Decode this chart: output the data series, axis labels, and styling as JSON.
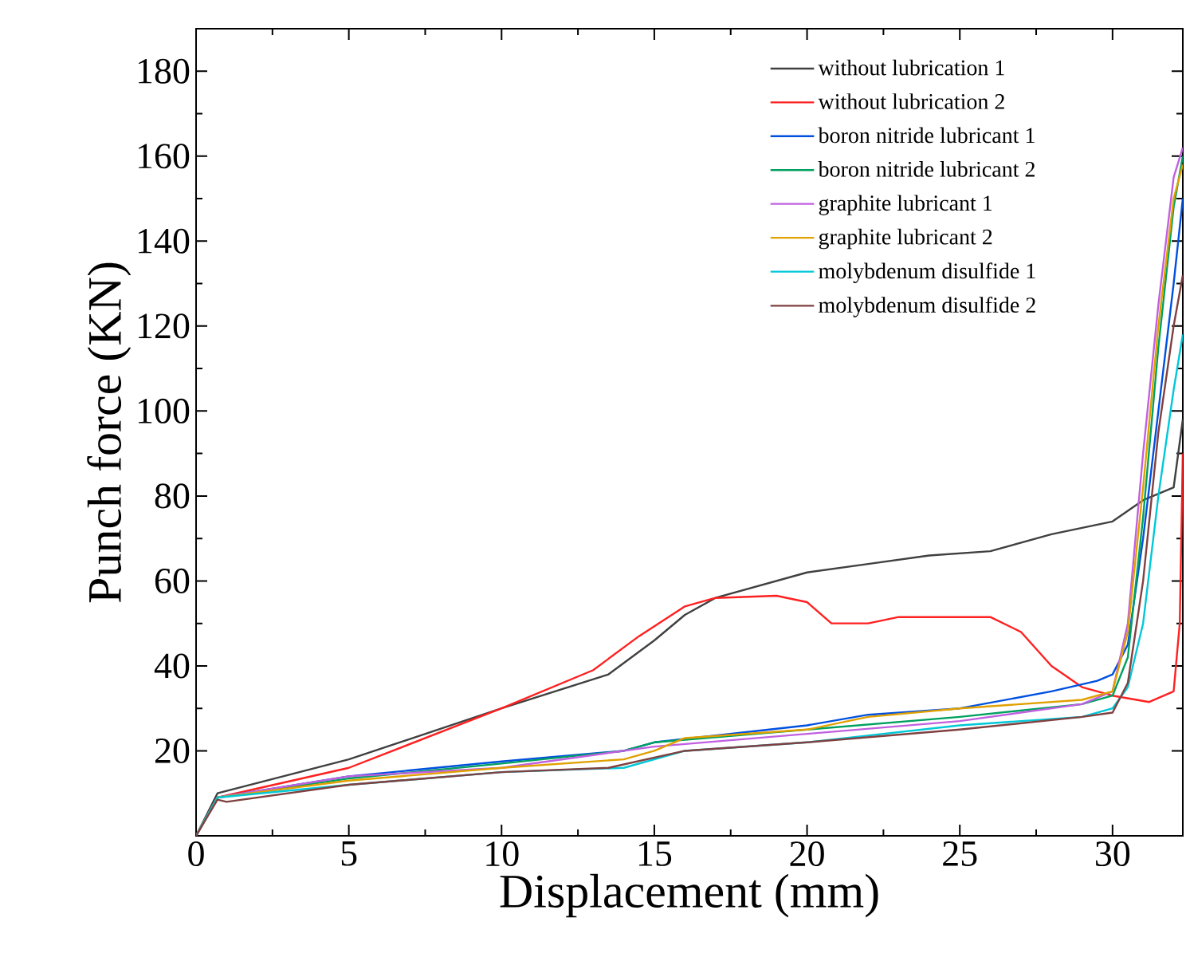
{
  "chart_data": {
    "type": "line",
    "xlabel": "Displacement (mm)",
    "ylabel": "Punch force (KN)",
    "xlim": [
      0,
      32.3
    ],
    "ylim": [
      0,
      190
    ],
    "xticks": [
      0,
      5,
      10,
      15,
      20,
      25,
      30
    ],
    "yticks": [
      20,
      40,
      60,
      80,
      100,
      120,
      140,
      160,
      180
    ],
    "legend": "top right",
    "grid": false,
    "marker": "none",
    "line_style": "solid",
    "series": [
      {
        "name": "without lubrication 1",
        "color": "#404040",
        "x": [
          0,
          0.7,
          5,
          10,
          13.5,
          15,
          16,
          17,
          20,
          22,
          24,
          26,
          28,
          30,
          31,
          32,
          32.3
        ],
        "values": [
          0,
          10,
          18,
          30,
          38,
          46,
          52,
          56,
          62,
          64,
          66,
          67,
          71,
          74,
          79,
          82,
          98
        ]
      },
      {
        "name": "without lubrication 2",
        "color": "#ff2020",
        "x": [
          0,
          0.7,
          5,
          10,
          13,
          14.5,
          16,
          17,
          19,
          20,
          20.8,
          22,
          23,
          26,
          27,
          28,
          29,
          30,
          31.2,
          32,
          32.2,
          32.3
        ],
        "values": [
          0,
          9,
          16,
          30,
          39,
          47,
          54,
          56,
          56.5,
          55,
          50,
          50,
          51.5,
          51.5,
          48,
          40,
          35,
          33,
          31.5,
          34,
          50,
          90
        ]
      },
      {
        "name": "boron nitride lubricant 1",
        "color": "#0050e0",
        "x": [
          0,
          0.7,
          5,
          10,
          14,
          15,
          20,
          22,
          25,
          28,
          29.5,
          30,
          30.5,
          31,
          31.5,
          32,
          32.3
        ],
        "values": [
          0,
          9,
          14,
          17.5,
          20,
          22,
          26,
          28.5,
          30,
          34,
          36.5,
          38,
          45,
          70,
          100,
          130,
          150
        ]
      },
      {
        "name": "boron nitride lubricant 2",
        "color": "#00a060",
        "x": [
          0,
          0.7,
          5,
          10,
          14,
          15,
          20,
          25,
          29,
          30,
          30.5,
          31,
          31.5,
          32,
          32.3
        ],
        "values": [
          0,
          9,
          13.5,
          17,
          20,
          22,
          25,
          28,
          31,
          33,
          42,
          75,
          115,
          148,
          160
        ]
      },
      {
        "name": "graphite lubricant 1",
        "color": "#c060e0",
        "x": [
          0,
          0.7,
          5,
          10,
          15,
          20,
          25,
          29,
          30,
          30.5,
          31,
          31.5,
          32,
          32.3
        ],
        "values": [
          0,
          9,
          14,
          16,
          21,
          24,
          27,
          31,
          34,
          50,
          90,
          125,
          155,
          162
        ]
      },
      {
        "name": "graphite lubricant 2",
        "color": "#e0a000",
        "x": [
          0,
          0.7,
          5,
          10,
          14,
          15,
          16,
          20,
          22,
          25,
          29,
          30,
          30.5,
          31,
          31.5,
          32,
          32.3
        ],
        "values": [
          0,
          9,
          13,
          16,
          18,
          20,
          23,
          25,
          28,
          30,
          32,
          34,
          48,
          82,
          120,
          150,
          158
        ]
      },
      {
        "name": "molybdenum disulfide 1",
        "color": "#00c8d8",
        "x": [
          0,
          0.7,
          5,
          10,
          14,
          16,
          20,
          25,
          29,
          30,
          30.5,
          31,
          31.5,
          32,
          32.3
        ],
        "values": [
          0,
          9,
          12,
          15,
          16,
          20,
          22,
          26,
          28,
          30,
          35,
          50,
          80,
          105,
          118
        ]
      },
      {
        "name": "molybdenum disulfide 2",
        "color": "#804040",
        "x": [
          0,
          0.7,
          1,
          5,
          10,
          13.5,
          16,
          20,
          25,
          29,
          30,
          30.5,
          31,
          31.5,
          32,
          32.3
        ],
        "values": [
          0,
          8.5,
          8,
          12,
          15,
          16,
          20,
          22,
          25,
          28,
          29,
          36,
          60,
          95,
          120,
          132
        ]
      }
    ]
  }
}
